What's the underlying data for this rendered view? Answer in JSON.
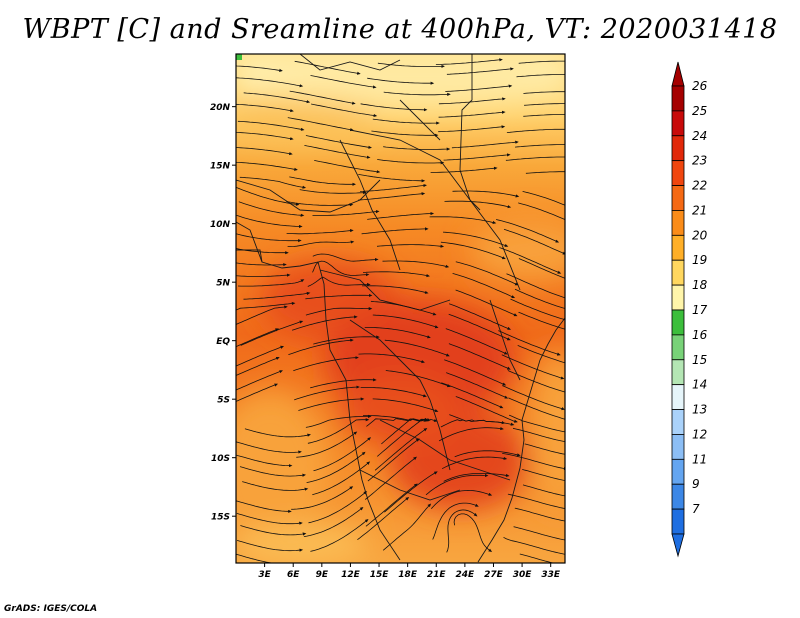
{
  "title": "WBPT [C] and Sreamline at 400hPa, VT: 2020031418",
  "credit": "GrADS: IGES/COLA",
  "map": {
    "lat_labels": [
      "20N",
      "15N",
      "10N",
      "5N",
      "EQ",
      "5S",
      "10S",
      "15S"
    ],
    "lat_values": [
      20,
      15,
      10,
      5,
      0,
      -5,
      -10,
      -15
    ],
    "lon_labels": [
      "3E",
      "6E",
      "9E",
      "12E",
      "15E",
      "18E",
      "21E",
      "24E",
      "27E",
      "30E",
      "33E"
    ],
    "lon_values": [
      3,
      6,
      9,
      12,
      15,
      18,
      21,
      24,
      27,
      30,
      33
    ],
    "lon_range": [
      0,
      34.5
    ],
    "lat_range": [
      -19,
      24.5
    ]
  },
  "colorbar": {
    "labels": [
      "26",
      "25",
      "24",
      "23",
      "22",
      "21",
      "20",
      "19",
      "18",
      "17",
      "16",
      "15",
      "14",
      "13",
      "12",
      "11",
      "9",
      "7"
    ],
    "colors": [
      "#a50000",
      "#c80a0a",
      "#e1280a",
      "#f0460f",
      "#f56914",
      "#fa8c19",
      "#ffaf28",
      "#ffd75f",
      "#fff5aa",
      "#3cbe3c",
      "#78d278",
      "#b4e6b4",
      "#e6f5fa",
      "#aad2fa",
      "#8cbef5",
      "#64a5f0",
      "#3c87e6",
      "#1e6ee1"
    ],
    "top_cap_color": "#a50000",
    "bottom_cap_color": "#1e6ee1"
  },
  "colors": {
    "frame": "#000000",
    "coast": "#1a1a1a",
    "stream": "#111111"
  }
}
